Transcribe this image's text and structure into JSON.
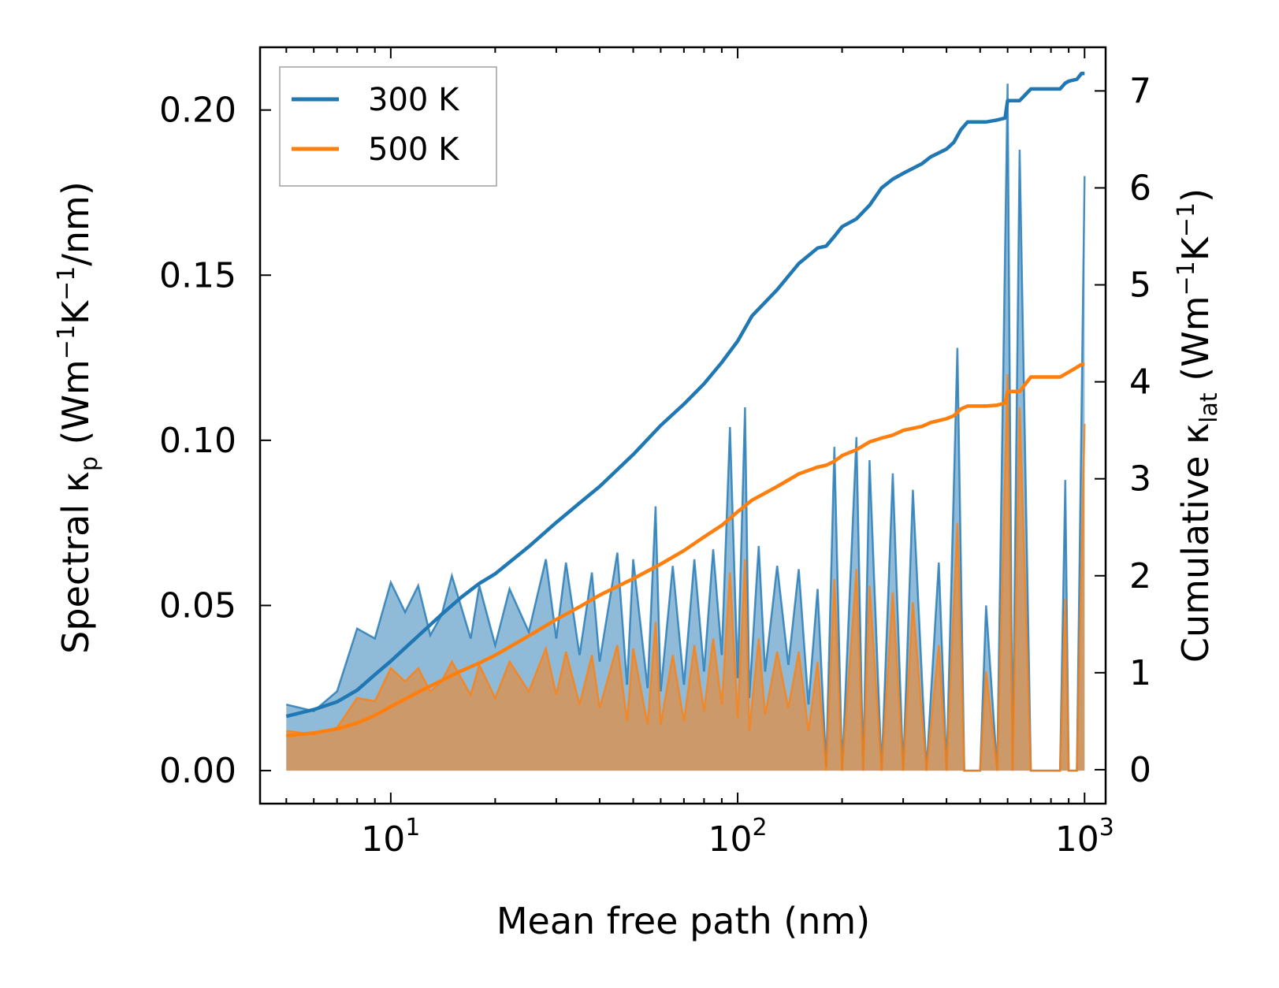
{
  "chart_data": {
    "type": "line",
    "xscale": "log",
    "xlim": [
      4.2,
      1150
    ],
    "xlabel": "Mean free path (nm)",
    "x_tick_labels": [
      {
        "base": "10",
        "exp": "1"
      },
      {
        "base": "10",
        "exp": "2"
      },
      {
        "base": "10",
        "exp": "3"
      }
    ],
    "y_left": {
      "label_parts": {
        "pre": "Spectral κ",
        "sub": "p",
        "mid": " (Wm",
        "sup1": "−1",
        "k": "K",
        "sup2": "−1",
        "post": "/nm)"
      },
      "ylim": [
        -0.01,
        0.219
      ],
      "ticks": [
        "0.00",
        "0.05",
        "0.10",
        "0.15",
        "0.20"
      ]
    },
    "y_right": {
      "label_parts": {
        "pre": "Cumulative κ",
        "sub": "lat",
        "mid": " (Wm",
        "sup1": "−1",
        "k": "K",
        "sup2": "−1",
        "post": ")"
      },
      "ylim": [
        -0.35,
        7.45
      ],
      "ticks": [
        "0",
        "1",
        "2",
        "3",
        "4",
        "5",
        "6",
        "7"
      ]
    },
    "legend": {
      "placement": "top-left",
      "entries": [
        "300 K",
        "500 K"
      ]
    },
    "colors": {
      "series_300": "#1f77b4",
      "series_500": "#ff7f0e"
    },
    "series": [
      {
        "name": "300 K",
        "axis": "left",
        "style": "filled-spectral",
        "x": [
          5,
          6,
          7,
          8,
          9,
          10,
          11,
          12,
          13,
          14,
          15,
          17,
          18,
          20,
          22,
          25,
          28,
          30,
          32,
          35,
          38,
          40,
          45,
          48,
          50,
          55,
          58,
          60,
          65,
          70,
          75,
          80,
          85,
          90,
          95,
          100,
          105,
          108,
          115,
          120,
          130,
          140,
          150,
          160,
          170,
          180,
          190,
          200,
          220,
          230,
          240,
          260,
          280,
          300,
          320,
          350,
          380,
          400,
          430,
          450,
          480,
          500,
          520,
          560,
          600,
          620,
          650,
          700,
          750,
          800,
          850,
          880,
          900,
          950,
          1000
        ],
        "values": [
          0.02,
          0.018,
          0.024,
          0.043,
          0.04,
          0.057,
          0.048,
          0.056,
          0.041,
          0.047,
          0.059,
          0.04,
          0.056,
          0.038,
          0.055,
          0.042,
          0.064,
          0.04,
          0.063,
          0.035,
          0.06,
          0.033,
          0.066,
          0.026,
          0.064,
          0.025,
          0.08,
          0.024,
          0.062,
          0.026,
          0.064,
          0.03,
          0.067,
          0.035,
          0.104,
          0.028,
          0.11,
          0.022,
          0.068,
          0.03,
          0.062,
          0.032,
          0.061,
          0.02,
          0.055,
          0.001,
          0.098,
          0.0,
          0.101,
          0.0,
          0.094,
          0.0,
          0.09,
          0.0,
          0.085,
          0.0,
          0.063,
          0.0,
          0.128,
          0.0,
          0.0,
          0.0,
          0.05,
          0.0,
          0.208,
          0.0,
          0.188,
          0.0,
          0.0,
          0.0,
          0.0,
          0.088,
          0.0,
          0.0,
          0.18
        ]
      },
      {
        "name": "500 K",
        "axis": "left",
        "style": "filled-spectral",
        "x": [
          5,
          6,
          7,
          8,
          9,
          10,
          11,
          12,
          13,
          14,
          15,
          17,
          18,
          20,
          22,
          25,
          28,
          30,
          32,
          35,
          38,
          40,
          45,
          48,
          50,
          55,
          58,
          60,
          65,
          70,
          75,
          80,
          85,
          90,
          95,
          100,
          105,
          108,
          115,
          120,
          130,
          140,
          150,
          160,
          170,
          180,
          190,
          200,
          220,
          230,
          240,
          260,
          280,
          300,
          320,
          350,
          380,
          400,
          430,
          450,
          480,
          500,
          520,
          560,
          600,
          620,
          650,
          700,
          750,
          800,
          850,
          880,
          900,
          950,
          1000
        ],
        "values": [
          0.012,
          0.011,
          0.013,
          0.022,
          0.021,
          0.031,
          0.027,
          0.031,
          0.024,
          0.027,
          0.033,
          0.023,
          0.032,
          0.022,
          0.033,
          0.024,
          0.037,
          0.023,
          0.036,
          0.02,
          0.035,
          0.019,
          0.038,
          0.015,
          0.037,
          0.014,
          0.045,
          0.014,
          0.035,
          0.015,
          0.038,
          0.018,
          0.04,
          0.02,
          0.06,
          0.016,
          0.064,
          0.012,
          0.04,
          0.017,
          0.036,
          0.019,
          0.036,
          0.012,
          0.033,
          0.0,
          0.058,
          0.0,
          0.061,
          0.0,
          0.056,
          0.0,
          0.054,
          0.0,
          0.051,
          0.0,
          0.038,
          0.0,
          0.075,
          0.0,
          0.0,
          0.0,
          0.03,
          0.0,
          0.12,
          0.0,
          0.11,
          0.0,
          0.0,
          0.0,
          0.0,
          0.052,
          0.0,
          0.0,
          0.105
        ]
      },
      {
        "name": "300 K",
        "axis": "right",
        "style": "cumulative",
        "x": [
          5,
          6,
          7,
          8,
          9,
          10,
          12,
          14,
          16,
          18,
          20,
          25,
          30,
          35,
          40,
          50,
          60,
          70,
          80,
          90,
          100,
          110,
          130,
          150,
          170,
          180,
          190,
          200,
          220,
          240,
          260,
          280,
          300,
          340,
          360,
          400,
          420,
          440,
          460,
          500,
          520,
          560,
          590,
          600,
          620,
          640,
          650,
          700,
          750,
          800,
          850,
          880,
          900,
          950,
          980,
          1000
        ],
        "values": [
          0.55,
          0.62,
          0.7,
          0.82,
          0.98,
          1.12,
          1.38,
          1.6,
          1.78,
          1.92,
          2.02,
          2.3,
          2.55,
          2.75,
          2.92,
          3.25,
          3.55,
          3.77,
          3.98,
          4.2,
          4.42,
          4.68,
          4.95,
          5.22,
          5.38,
          5.4,
          5.5,
          5.6,
          5.68,
          5.82,
          6.0,
          6.09,
          6.15,
          6.25,
          6.32,
          6.4,
          6.47,
          6.6,
          6.68,
          6.68,
          6.68,
          6.7,
          6.72,
          6.9,
          6.9,
          6.9,
          6.9,
          7.02,
          7.02,
          7.02,
          7.02,
          7.08,
          7.1,
          7.12,
          7.18,
          7.18
        ]
      },
      {
        "name": "500 K",
        "axis": "right",
        "style": "cumulative",
        "x": [
          5,
          6,
          7,
          8,
          9,
          10,
          12,
          14,
          16,
          18,
          20,
          25,
          30,
          35,
          40,
          50,
          60,
          70,
          80,
          90,
          100,
          110,
          130,
          150,
          170,
          180,
          190,
          200,
          220,
          240,
          260,
          280,
          300,
          340,
          360,
          400,
          420,
          440,
          460,
          500,
          520,
          560,
          590,
          600,
          620,
          640,
          650,
          700,
          750,
          800,
          850,
          880,
          900,
          950,
          980,
          1000
        ],
        "values": [
          0.35,
          0.38,
          0.42,
          0.48,
          0.56,
          0.65,
          0.8,
          0.92,
          1.02,
          1.1,
          1.18,
          1.38,
          1.55,
          1.68,
          1.8,
          1.97,
          2.12,
          2.26,
          2.4,
          2.52,
          2.66,
          2.78,
          2.92,
          3.05,
          3.12,
          3.14,
          3.18,
          3.24,
          3.3,
          3.38,
          3.42,
          3.45,
          3.5,
          3.54,
          3.58,
          3.62,
          3.65,
          3.72,
          3.75,
          3.75,
          3.75,
          3.76,
          3.78,
          3.9,
          3.9,
          3.9,
          3.9,
          4.05,
          4.05,
          4.05,
          4.05,
          4.08,
          4.1,
          4.15,
          4.18,
          4.18
        ]
      }
    ]
  }
}
